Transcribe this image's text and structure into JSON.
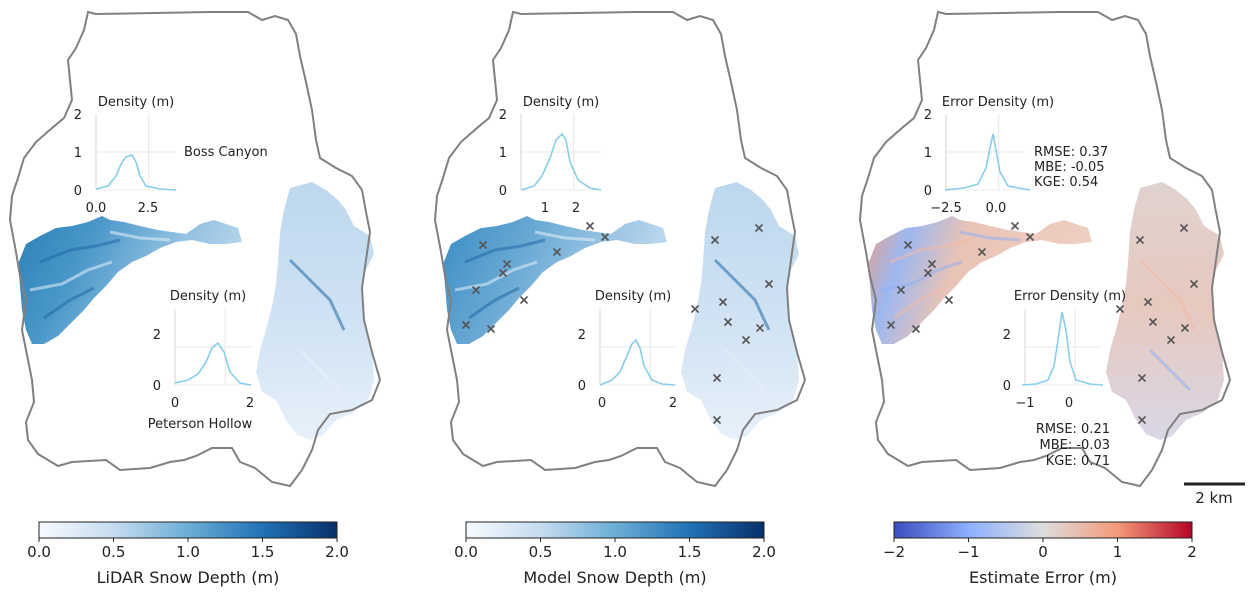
{
  "panels": [
    {
      "id": "lidar",
      "colorbar": {
        "label": "LiDAR Snow Depth (m)",
        "ticks": [
          "0.0",
          "0.5",
          "1.0",
          "1.5",
          "2.0"
        ],
        "cmap": [
          "#f7fbff",
          "#c6dbef",
          "#6baed6",
          "#2171b5",
          "#08306b"
        ]
      },
      "insets": [
        {
          "title": "Density (m)",
          "yticks": [
            "2",
            "1",
            "0"
          ],
          "xticks": [
            "0.0",
            "2.5"
          ],
          "side_label": "Boss Canyon"
        },
        {
          "title": "Density (m)",
          "yticks": [
            "2",
            "0"
          ],
          "xticks": [
            "0",
            "2"
          ],
          "side_label": "Peterson Hollow"
        }
      ]
    },
    {
      "id": "model",
      "colorbar": {
        "label": "Model Snow Depth (m)",
        "ticks": [
          "0.0",
          "0.5",
          "1.0",
          "1.5",
          "2.0"
        ],
        "cmap": [
          "#f7fbff",
          "#c6dbef",
          "#6baed6",
          "#2171b5",
          "#08306b"
        ]
      },
      "insets": [
        {
          "title": "Density (m)",
          "yticks": [
            "2",
            "1",
            "0"
          ],
          "xticks": [
            "1",
            "2"
          ]
        },
        {
          "title": "Density (m)",
          "yticks": [
            "2",
            "0"
          ],
          "xticks": [
            "0",
            "2"
          ]
        }
      ]
    },
    {
      "id": "error",
      "colorbar": {
        "label": "Estimate Error (m)",
        "ticks": [
          "−2",
          "−1",
          "0",
          "1",
          "2"
        ],
        "cmap": [
          "#3b4cc0",
          "#8db0fe",
          "#dddddd",
          "#f49a7b",
          "#b40426"
        ]
      },
      "insets": [
        {
          "title": "Error Density (m)",
          "yticks": [
            "2",
            "1",
            "0"
          ],
          "xticks": [
            "−2.5",
            "0.0"
          ],
          "stats": [
            "RMSE: 0.37",
            "MBE: -0.05",
            "KGE: 0.54"
          ]
        },
        {
          "title": "Error Density (m)",
          "yticks": [
            "2",
            "0"
          ],
          "xticks": [
            "−1",
            "0"
          ],
          "stats": [
            "RMSE: 0.21",
            "MBE: -0.03",
            "KGE: 0.71"
          ]
        }
      ]
    }
  ],
  "scale_bar": {
    "label": "2 km"
  },
  "colors": {
    "outline": "#808080",
    "kde": "#87ceeb",
    "marker": "#555555"
  }
}
